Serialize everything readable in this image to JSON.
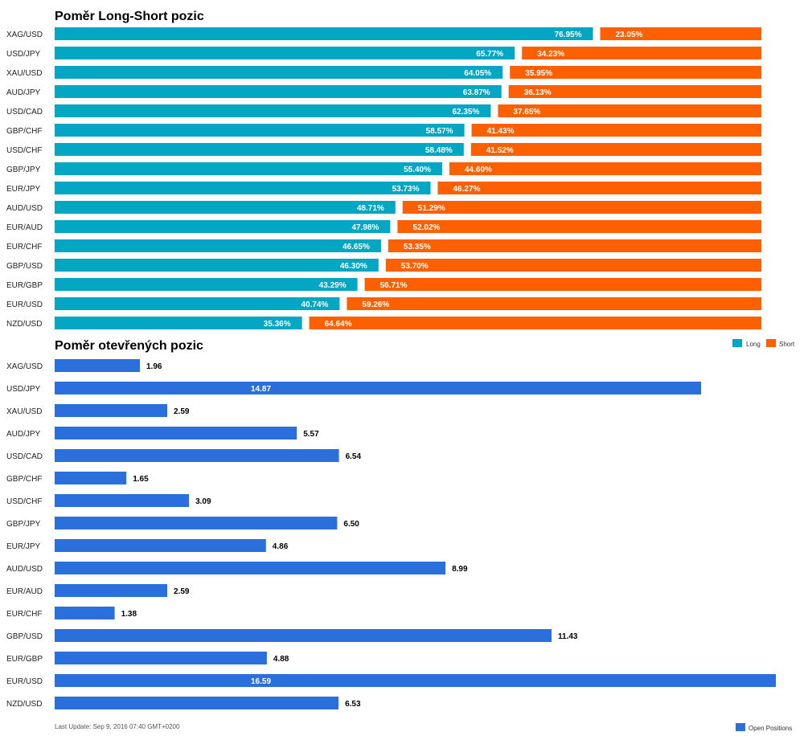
{
  "colors": {
    "long": "#03a6c3",
    "short": "#fe6000",
    "open": "#2b6fdc"
  },
  "legend": {
    "long_label": "Long",
    "short_label": "Short",
    "open_label": "Open Positions"
  },
  "footer": "Last Update: Sep 9, 2016 07:40 GMT+0200",
  "chart_data": [
    {
      "type": "bar",
      "orientation": "horizontal",
      "stacked": true,
      "title": "Poměr Long-Short pozic",
      "legend_position": "bottom-right",
      "categories": [
        "XAG/USD",
        "USD/JPY",
        "XAU/USD",
        "AUD/JPY",
        "USD/CAD",
        "GBP/CHF",
        "USD/CHF",
        "GBP/JPY",
        "EUR/JPY",
        "AUD/USD",
        "EUR/AUD",
        "EUR/CHF",
        "GBP/USD",
        "EUR/GBP",
        "EUR/USD",
        "NZD/USD"
      ],
      "series": [
        {
          "name": "Long",
          "values": [
            76.95,
            65.77,
            64.05,
            63.87,
            62.35,
            58.57,
            58.48,
            55.4,
            53.73,
            48.71,
            47.98,
            46.65,
            46.3,
            43.29,
            40.74,
            35.36
          ]
        },
        {
          "name": "Short",
          "values": [
            23.05,
            34.23,
            35.95,
            36.13,
            37.65,
            41.43,
            41.52,
            44.6,
            46.27,
            51.29,
            52.02,
            53.35,
            53.7,
            56.71,
            59.26,
            64.64
          ]
        }
      ],
      "labels": {
        "long": [
          "76.95%",
          "65.77%",
          "64.05%",
          "63.87%",
          "62.35%",
          "58.57%",
          "58.48%",
          "55.40%",
          "53.73%",
          "48.71%",
          "47.98%",
          "46.65%",
          "46.30%",
          "43.29%",
          "40.74%",
          "35.36%"
        ],
        "short": [
          "23.05%",
          "34.23%",
          "35.95%",
          "36.13%",
          "37.65%",
          "41.43%",
          "41.52%",
          "44.60%",
          "46.27%",
          "51.29%",
          "52.02%",
          "53.35%",
          "53.70%",
          "56.71%",
          "59.26%",
          "64.64%"
        ]
      }
    },
    {
      "type": "bar",
      "orientation": "horizontal",
      "title": "Poměr otevřených pozic",
      "legend_position": "bottom-right",
      "categories": [
        "XAG/USD",
        "USD/JPY",
        "XAU/USD",
        "AUD/JPY",
        "USD/CAD",
        "GBP/CHF",
        "USD/CHF",
        "GBP/JPY",
        "EUR/JPY",
        "AUD/USD",
        "EUR/AUD",
        "EUR/CHF",
        "GBP/USD",
        "EUR/GBP",
        "EUR/USD",
        "NZD/USD"
      ],
      "series": [
        {
          "name": "Open Positions",
          "values": [
            1.96,
            14.87,
            2.59,
            5.57,
            6.54,
            1.65,
            3.09,
            6.5,
            4.86,
            8.99,
            2.59,
            1.38,
            11.43,
            4.88,
            16.59,
            6.53
          ]
        }
      ],
      "labels": [
        "1.96",
        "14.87",
        "2.59",
        "5.57",
        "6.54",
        "1.65",
        "3.09",
        "6.50",
        "4.86",
        "8.99",
        "2.59",
        "1.38",
        "11.43",
        "4.88",
        "16.59",
        "6.53"
      ],
      "xlim": [
        0,
        16.59
      ]
    }
  ]
}
